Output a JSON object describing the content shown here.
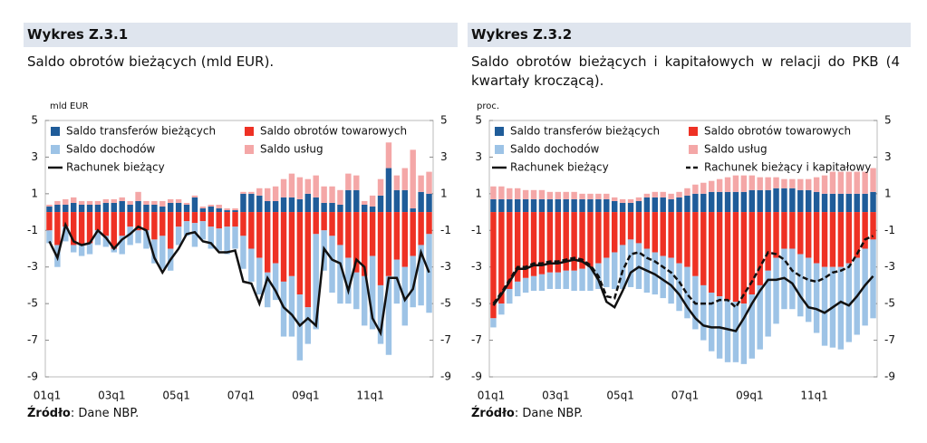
{
  "chart_data": [
    {
      "type": "stacked_bar",
      "label": "Wykres Z.3.1",
      "title": "Saldo obrotów bieżących (mld EUR).",
      "unit_label": "mld EUR",
      "categories": [
        "01q1",
        null,
        null,
        null,
        null,
        null,
        null,
        null,
        "03q1",
        null,
        null,
        null,
        null,
        null,
        null,
        null,
        "05q1",
        null,
        null,
        null,
        null,
        null,
        null,
        null,
        "07q1",
        null,
        null,
        null,
        null,
        null,
        null,
        null,
        "09q1",
        null,
        null,
        null,
        null,
        null,
        null,
        null,
        "11q1",
        null,
        null,
        null,
        null,
        null,
        null,
        null
      ],
      "ylim": [
        -9,
        5
      ],
      "yticks": [
        -9,
        -7,
        -5,
        -3,
        -1,
        1,
        3,
        5
      ],
      "series": [
        {
          "name": "Saldo transferów bieżących",
          "type": "bar",
          "color": "#1f5c99",
          "values": [
            0.3,
            0.4,
            0.4,
            0.5,
            0.4,
            0.4,
            0.4,
            0.5,
            0.5,
            0.6,
            0.4,
            0.6,
            0.4,
            0.4,
            0.3,
            0.5,
            0.5,
            0.4,
            0.8,
            0.2,
            0.3,
            0.2,
            0.1,
            0.1,
            1.0,
            1.0,
            0.9,
            0.6,
            0.6,
            0.8,
            0.8,
            0.7,
            1.0,
            0.8,
            0.5,
            0.5,
            0.4,
            1.2,
            1.2,
            0.4,
            0.3,
            0.9,
            2.4,
            1.2,
            1.2,
            0.2,
            1.1,
            1.0
          ]
        },
        {
          "name": "Saldo obrotów towarowych",
          "type": "bar",
          "color": "#ee3124",
          "values": [
            -1.0,
            -1.8,
            -0.8,
            -1.8,
            -1.8,
            -1.7,
            -1.0,
            -1.3,
            -2.0,
            -1.3,
            -0.8,
            -1.0,
            -1.0,
            -1.5,
            -1.3,
            -2.0,
            -0.8,
            -0.5,
            -0.6,
            -0.5,
            -0.8,
            -0.9,
            -0.8,
            -0.8,
            -1.3,
            -2.0,
            -2.5,
            -3.3,
            -2.8,
            -3.8,
            -3.5,
            -4.5,
            -5.2,
            -1.2,
            -1.0,
            -1.3,
            -1.8,
            -2.5,
            -3.3,
            -3.5,
            -2.4,
            -4.0,
            -3.5,
            -2.6,
            -3.0,
            -2.4,
            -1.8,
            -1.2
          ]
        },
        {
          "name": "Saldo dochodów",
          "type": "bar",
          "color": "#9dc3e6",
          "values": [
            -0.7,
            -1.2,
            -0.8,
            -0.4,
            -0.6,
            -0.6,
            -0.8,
            -0.6,
            -0.2,
            -1.0,
            -1.0,
            -0.7,
            -1.0,
            -1.3,
            -1.8,
            -1.2,
            -1.0,
            -0.8,
            -1.3,
            -1.0,
            -1.2,
            -1.2,
            -1.5,
            -1.2,
            -1.8,
            -1.8,
            -2.0,
            -1.9,
            -2.0,
            -3.0,
            -3.3,
            -3.6,
            -2.0,
            -5.2,
            -2.2,
            -3.1,
            -3.2,
            -2.5,
            -2.0,
            -2.7,
            -4.0,
            -3.2,
            -4.3,
            -2.4,
            -3.2,
            -2.8,
            -3.3,
            -4.3
          ]
        },
        {
          "name": "Saldo usług",
          "type": "bar",
          "color": "#f4a7a7",
          "values": [
            0.1,
            0.2,
            0.3,
            0.3,
            0.2,
            0.2,
            0.2,
            0.2,
            0.2,
            0.2,
            0.2,
            0.5,
            0.2,
            0.2,
            0.3,
            0.2,
            0.2,
            0.1,
            0.1,
            0.1,
            0.1,
            0.2,
            0.1,
            0.1,
            0.1,
            0.1,
            0.4,
            0.7,
            0.8,
            1.0,
            1.3,
            1.2,
            0.8,
            1.2,
            0.9,
            0.9,
            0.8,
            0.9,
            0.8,
            0.2,
            0.6,
            0.9,
            1.4,
            0.8,
            1.2,
            3.2,
            0.9,
            1.2
          ]
        },
        {
          "name": "Rachunek bieżący",
          "type": "line",
          "color": "#111111",
          "line_style": "solid",
          "values": [
            -1.6,
            -2.5,
            -0.7,
            -1.6,
            -1.8,
            -1.7,
            -1.0,
            -1.4,
            -2.0,
            -1.5,
            -1.2,
            -0.8,
            -1.0,
            -2.5,
            -3.3,
            -2.6,
            -2.0,
            -1.2,
            -1.1,
            -1.6,
            -1.7,
            -2.2,
            -2.2,
            -2.1,
            -3.8,
            -3.9,
            -5.0,
            -3.6,
            -4.3,
            -5.2,
            -5.6,
            -6.2,
            -5.8,
            -6.2,
            -2.0,
            -2.6,
            -2.8,
            -4.3,
            -2.6,
            -3.0,
            -5.8,
            -6.6,
            -3.6,
            -3.6,
            -4.8,
            -4.2,
            -2.2,
            -3.3
          ]
        }
      ],
      "source": {
        "label": "Źródło",
        "text": ": Dane NBP."
      }
    },
    {
      "type": "stacked_bar",
      "label": "Wykres Z.3.2",
      "title": "Saldo obrotów bieżących i kapitałowych w relacji do PKB (4 kwartały kroczącą).",
      "unit_label": "proc.",
      "categories": [
        "01q1",
        null,
        null,
        null,
        null,
        null,
        null,
        null,
        "03q1",
        null,
        null,
        null,
        null,
        null,
        null,
        null,
        "05q1",
        null,
        null,
        null,
        null,
        null,
        null,
        null,
        "07q1",
        null,
        null,
        null,
        null,
        null,
        null,
        null,
        "09q1",
        null,
        null,
        null,
        null,
        null,
        null,
        null,
        "11q1",
        null,
        null,
        null,
        null,
        null,
        null,
        null
      ],
      "ylim": [
        -9,
        5
      ],
      "yticks": [
        -9,
        -7,
        -5,
        -3,
        -1,
        1,
        3,
        5
      ],
      "series": [
        {
          "name": "Saldo transferów bieżących",
          "type": "bar",
          "color": "#1f5c99",
          "values": [
            0.7,
            0.7,
            0.7,
            0.7,
            0.7,
            0.7,
            0.7,
            0.7,
            0.7,
            0.7,
            0.7,
            0.7,
            0.7,
            0.7,
            0.7,
            0.6,
            0.5,
            0.5,
            0.6,
            0.8,
            0.8,
            0.8,
            0.7,
            0.8,
            0.9,
            1.0,
            1.0,
            1.1,
            1.1,
            1.1,
            1.1,
            1.1,
            1.2,
            1.2,
            1.2,
            1.3,
            1.3,
            1.3,
            1.2,
            1.2,
            1.1,
            1.0,
            1.0,
            1.0,
            1.0,
            1.0,
            1.0,
            1.1
          ]
        },
        {
          "name": "Saldo obrotów towarowych",
          "type": "bar",
          "color": "#ee3124",
          "values": [
            -5.8,
            -5.0,
            -4.2,
            -3.8,
            -3.6,
            -3.5,
            -3.4,
            -3.3,
            -3.3,
            -3.2,
            -3.2,
            -3.1,
            -3.0,
            -2.8,
            -2.5,
            -2.2,
            -1.8,
            -1.5,
            -1.7,
            -2.0,
            -2.2,
            -2.4,
            -2.5,
            -2.8,
            -3.0,
            -3.5,
            -4.0,
            -4.4,
            -4.6,
            -4.8,
            -4.9,
            -5.0,
            -4.5,
            -4.0,
            -3.2,
            -2.5,
            -2.0,
            -2.0,
            -2.3,
            -2.5,
            -2.8,
            -3.0,
            -3.0,
            -3.0,
            -2.8,
            -2.5,
            -2.0,
            -1.5
          ]
        },
        {
          "name": "Saldo dochodów",
          "type": "bar",
          "color": "#9dc3e6",
          "values": [
            -0.5,
            -0.6,
            -0.8,
            -0.8,
            -0.8,
            -0.8,
            -0.9,
            -0.9,
            -0.9,
            -1.0,
            -1.1,
            -1.2,
            -1.3,
            -1.4,
            -1.6,
            -2.0,
            -2.4,
            -2.6,
            -2.5,
            -2.4,
            -2.3,
            -2.3,
            -2.5,
            -2.6,
            -2.8,
            -2.9,
            -3.0,
            -3.2,
            -3.4,
            -3.4,
            -3.3,
            -3.3,
            -3.5,
            -3.5,
            -3.6,
            -3.6,
            -3.3,
            -3.3,
            -3.4,
            -3.5,
            -3.8,
            -4.3,
            -4.4,
            -4.5,
            -4.3,
            -4.2,
            -4.2,
            -4.3
          ]
        },
        {
          "name": "Saldo usług",
          "type": "bar",
          "color": "#f4a7a7",
          "values": [
            0.7,
            0.7,
            0.6,
            0.6,
            0.5,
            0.5,
            0.5,
            0.4,
            0.4,
            0.4,
            0.4,
            0.3,
            0.3,
            0.3,
            0.3,
            0.2,
            0.2,
            0.2,
            0.2,
            0.2,
            0.3,
            0.3,
            0.3,
            0.3,
            0.4,
            0.5,
            0.6,
            0.6,
            0.7,
            0.8,
            0.9,
            0.9,
            0.8,
            0.7,
            0.7,
            0.6,
            0.5,
            0.5,
            0.6,
            0.6,
            0.8,
            1.0,
            1.2,
            1.2,
            1.2,
            1.2,
            1.2,
            1.3
          ]
        },
        {
          "name": "Rachunek bieżący",
          "type": "line",
          "color": "#111111",
          "line_style": "solid",
          "values": [
            -5.1,
            -4.5,
            -3.8,
            -3.1,
            -3.1,
            -2.9,
            -2.9,
            -2.8,
            -2.8,
            -2.7,
            -2.6,
            -2.7,
            -3.0,
            -3.7,
            -4.9,
            -5.2,
            -4.3,
            -3.3,
            -3.0,
            -3.2,
            -3.4,
            -3.7,
            -4.0,
            -4.5,
            -5.2,
            -5.8,
            -6.2,
            -6.3,
            -6.3,
            -6.4,
            -6.5,
            -5.8,
            -5.0,
            -4.3,
            -3.7,
            -3.7,
            -3.6,
            -3.9,
            -4.6,
            -5.2,
            -5.3,
            -5.5,
            -5.2,
            -4.9,
            -5.1,
            -4.6,
            -4.0,
            -3.5
          ]
        },
        {
          "name": "Rachunek bieżący i kapitałowy",
          "type": "line",
          "color": "#111111",
          "line_style": "dashed",
          "values": [
            -5.0,
            -4.4,
            -3.7,
            -3.0,
            -3.0,
            -2.8,
            -2.8,
            -2.7,
            -2.7,
            -2.6,
            -2.5,
            -2.6,
            -2.9,
            -3.5,
            -4.6,
            -4.7,
            -3.2,
            -2.3,
            -2.2,
            -2.5,
            -2.7,
            -3.0,
            -3.3,
            -3.8,
            -4.5,
            -5.0,
            -5.0,
            -5.0,
            -4.8,
            -4.8,
            -5.2,
            -4.5,
            -3.8,
            -3.0,
            -2.2,
            -2.3,
            -2.6,
            -3.2,
            -3.5,
            -3.7,
            -3.8,
            -3.6,
            -3.3,
            -3.2,
            -3.0,
            -2.3,
            -1.5,
            -1.3
          ]
        }
      ],
      "source": {
        "label": "Źródło",
        "text": ": Dane NBP."
      }
    }
  ]
}
